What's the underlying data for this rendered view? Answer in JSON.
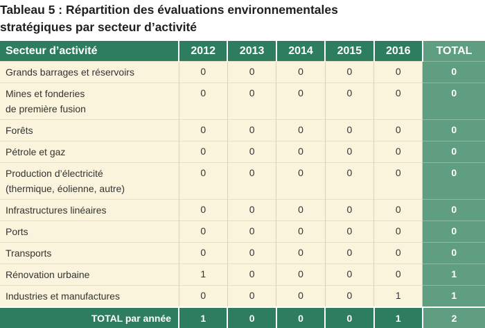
{
  "caption": {
    "line1": "Tableau 5 : Répartition des évaluations environnementales",
    "line2": "stratégiques par secteur d’activité"
  },
  "headers": {
    "sector": "Secteur d’activité",
    "years": [
      "2012",
      "2013",
      "2014",
      "2015",
      "2016"
    ],
    "total": "TOTAL"
  },
  "rows": [
    {
      "sector": [
        "Grands barrages et réservoirs"
      ],
      "values": [
        "0",
        "0",
        "0",
        "0",
        "0"
      ],
      "total": "0"
    },
    {
      "sector": [
        "Mines et fonderies",
        "de première fusion"
      ],
      "values": [
        "0",
        "0",
        "0",
        "0",
        "0"
      ],
      "total": "0"
    },
    {
      "sector": [
        "Forêts"
      ],
      "values": [
        "0",
        "0",
        "0",
        "0",
        "0"
      ],
      "total": "0"
    },
    {
      "sector": [
        "Pétrole et gaz"
      ],
      "values": [
        "0",
        "0",
        "0",
        "0",
        "0"
      ],
      "total": "0"
    },
    {
      "sector": [
        "Production d’électricité",
        "(thermique, éolienne, autre)"
      ],
      "values": [
        "0",
        "0",
        "0",
        "0",
        "0"
      ],
      "total": "0"
    },
    {
      "sector": [
        "Infrastructures linéaires"
      ],
      "values": [
        "0",
        "0",
        "0",
        "0",
        "0"
      ],
      "total": "0"
    },
    {
      "sector": [
        "Ports"
      ],
      "values": [
        "0",
        "0",
        "0",
        "0",
        "0"
      ],
      "total": "0"
    },
    {
      "sector": [
        "Transports"
      ],
      "values": [
        "0",
        "0",
        "0",
        "0",
        "0"
      ],
      "total": "0"
    },
    {
      "sector": [
        "Rénovation urbaine"
      ],
      "values": [
        "1",
        "0",
        "0",
        "0",
        "0"
      ],
      "total": "1"
    },
    {
      "sector": [
        "Industries et manufactures"
      ],
      "values": [
        "0",
        "0",
        "0",
        "0",
        "1"
      ],
      "total": "1"
    }
  ],
  "footer": {
    "label": "TOTAL par année",
    "values": [
      "1",
      "0",
      "0",
      "0",
      "1"
    ],
    "total": "2"
  }
}
